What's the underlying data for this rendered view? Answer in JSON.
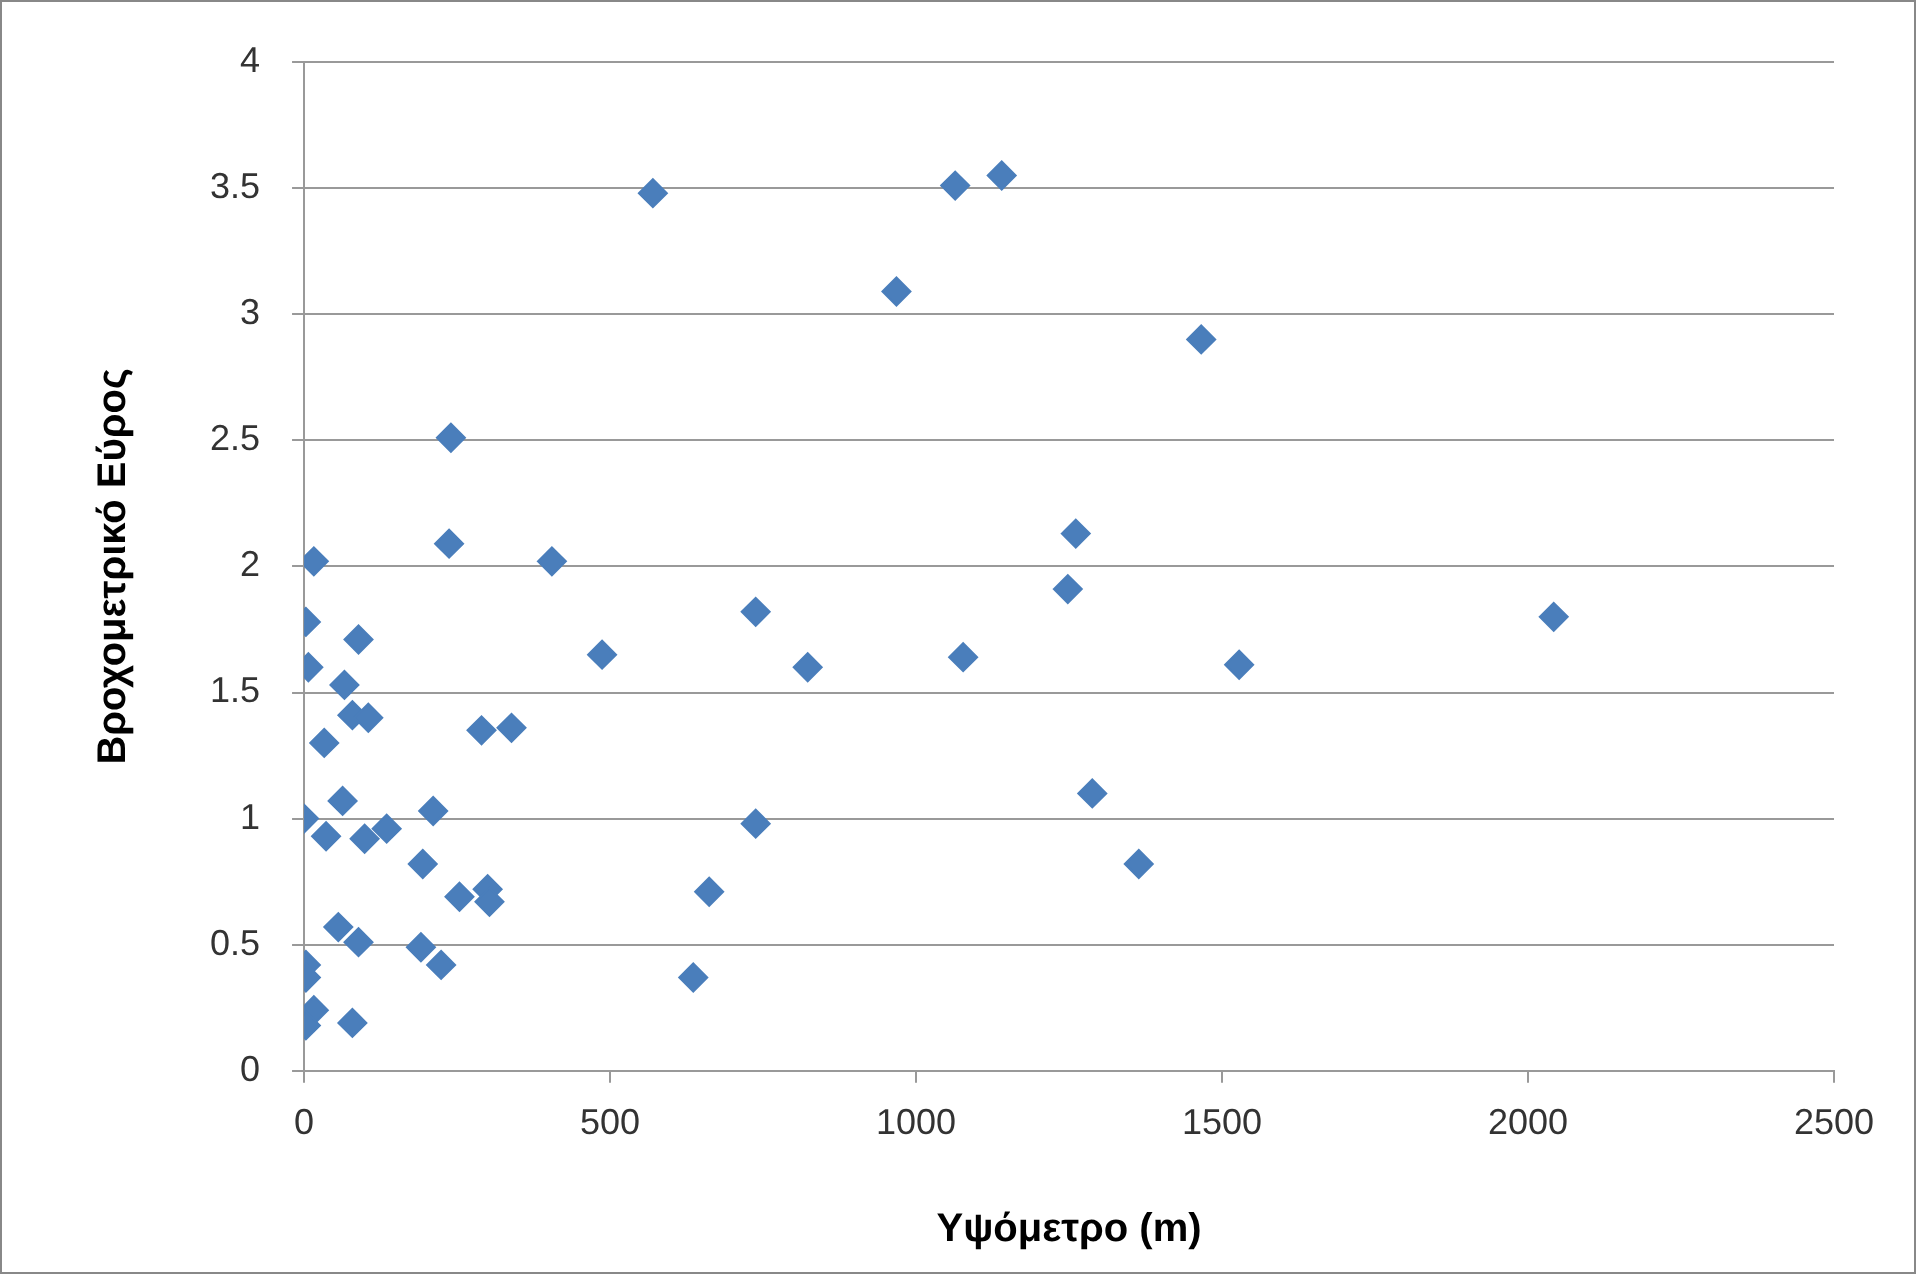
{
  "chart_data": {
    "type": "scatter",
    "xlabel": "Υψόμετρο (m)",
    "ylabel": "Βροχομετρικό Εύρος",
    "xlim": [
      0,
      2500
    ],
    "xticks": [
      0,
      500,
      1000,
      1500,
      2000,
      2500
    ],
    "ylim": [
      0,
      4
    ],
    "yticks": [
      0,
      0.5,
      1,
      1.5,
      2,
      2.5,
      3,
      3.5,
      4
    ],
    "grid": "y",
    "legend": false,
    "marker": "diamond",
    "series": [
      {
        "color": "#4a7ebb",
        "x": [
          570,
          1064,
          1140,
          968,
          1466,
          240,
          16,
          237,
          405,
          1261,
          1248,
          738,
          2042,
          3,
          89,
          487,
          1077,
          1528,
          823,
          7,
          66,
          79,
          105,
          33,
          290,
          339,
          1288,
          63,
          211,
          0,
          36,
          99,
          135,
          738,
          1364,
          194,
          254,
          300,
          303,
          662,
          56,
          89,
          191,
          224,
          636,
          3,
          3,
          16,
          3,
          79
        ],
        "values": [
          3.48,
          3.51,
          3.55,
          3.09,
          2.9,
          2.51,
          2.02,
          2.09,
          2.02,
          2.13,
          1.91,
          1.82,
          1.8,
          1.78,
          1.71,
          1.65,
          1.64,
          1.61,
          1.6,
          1.6,
          1.53,
          1.41,
          1.4,
          1.3,
          1.35,
          1.36,
          1.1,
          1.07,
          1.03,
          1,
          0.93,
          0.92,
          0.96,
          0.98,
          0.82,
          0.82,
          0.69,
          0.72,
          0.67,
          0.71,
          0.57,
          0.51,
          0.49,
          0.42,
          0.37,
          0.42,
          0.37,
          0.24,
          0.18,
          0.19
        ]
      }
    ]
  }
}
